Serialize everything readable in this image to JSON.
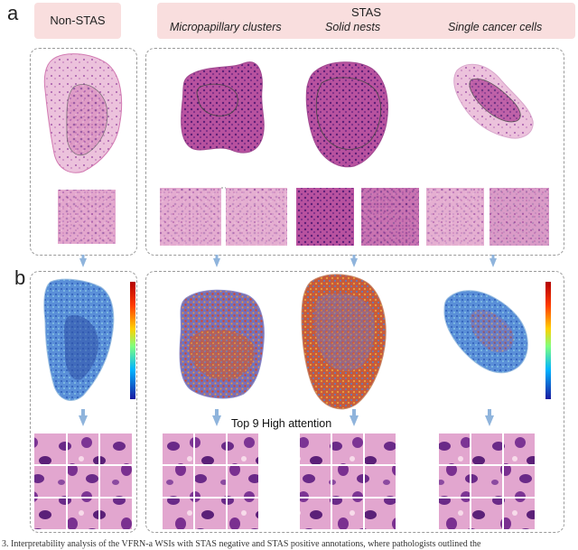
{
  "panel_a_label": "a",
  "panel_b_label": "b",
  "header_non_stas": "Non-STAS",
  "header_stas": "STAS",
  "subheaders": [
    "Micropapillary clusters",
    "Solid nests",
    "Single cancer cells"
  ],
  "attention_label": "Top 9 High attention",
  "caption": "3. Interpretability analysis of the VFRN-a WSIs with STAS negative and STAS positive annotations, where pathologists outlined the",
  "colors": {
    "header_bg": "#f9dede",
    "arrow": "#8fb4dc",
    "he_pink": "#d77fb5",
    "he_purple": "#6b2a86",
    "heat_blue": "#4a7fd0",
    "heat_red": "#d24a2a"
  }
}
